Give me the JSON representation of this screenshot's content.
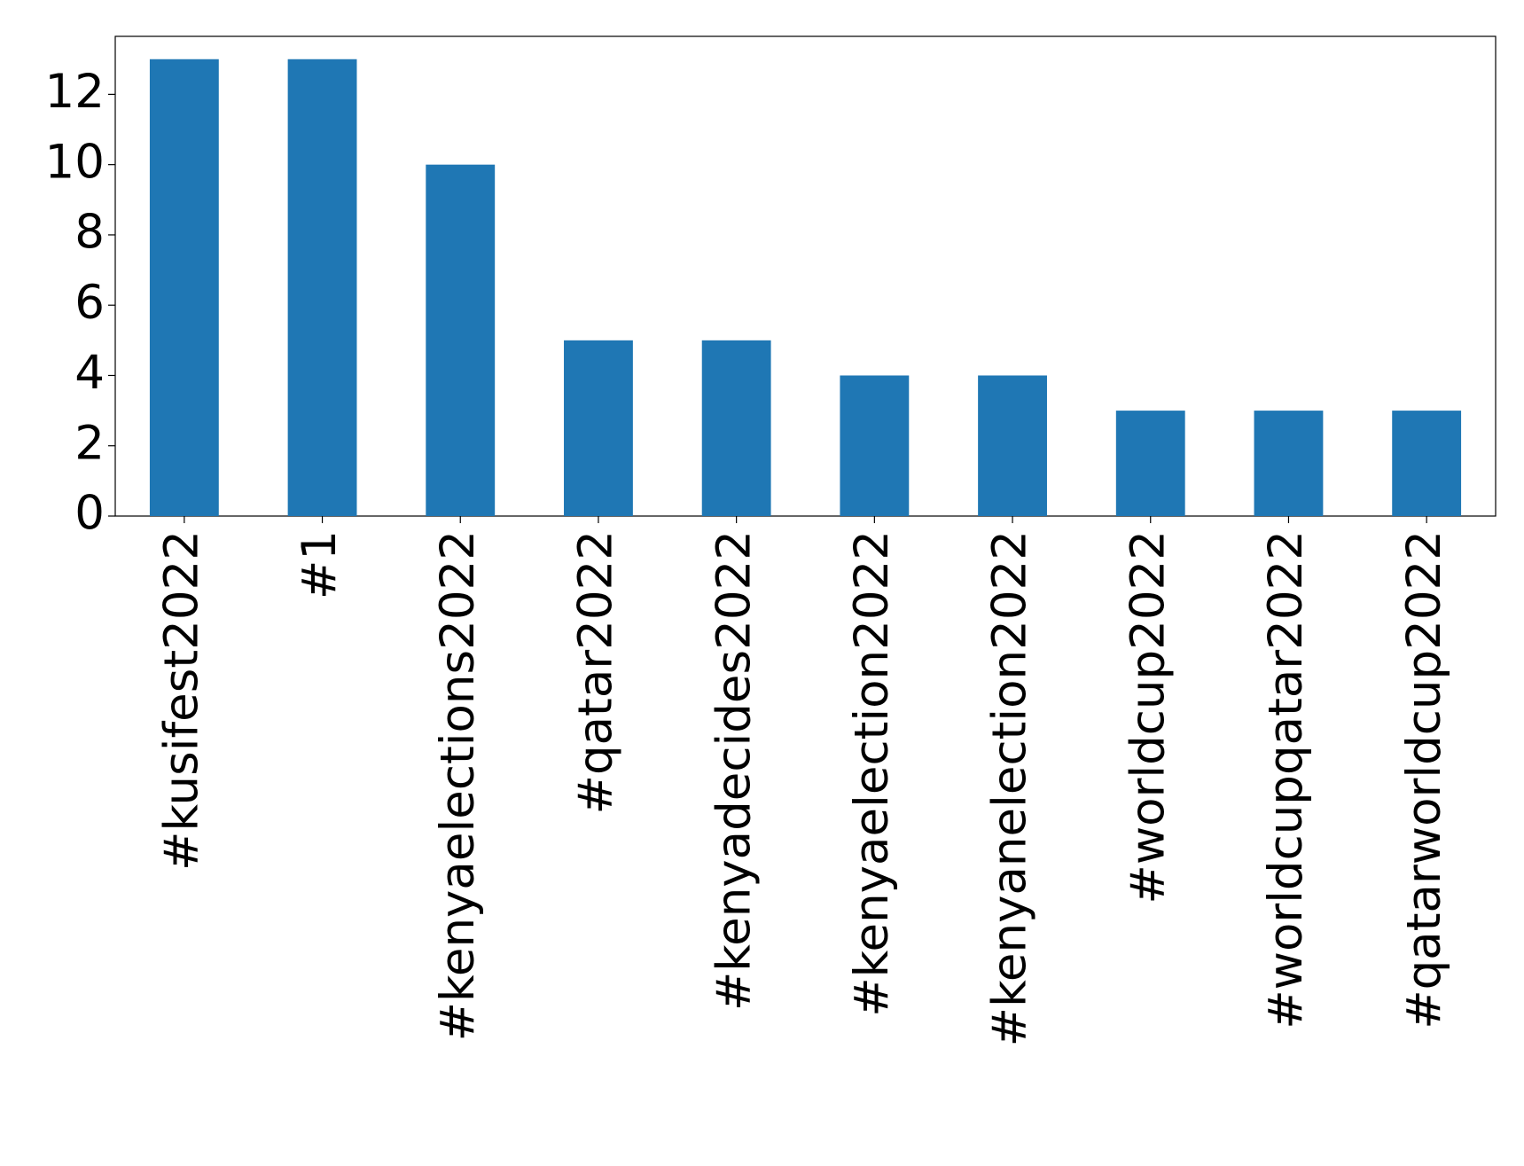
{
  "chart_data": {
    "type": "bar",
    "categories": [
      "#kusifest2022",
      "#1",
      "#kenyaelections2022",
      "#qatar2022",
      "#kenyadecides2022",
      "#kenyaelection2022",
      "#kenyanelection2022",
      "#worldcup2022",
      "#worldcupqatar2022",
      "#qatarworldcup2022"
    ],
    "values": [
      13,
      13,
      10,
      5,
      5,
      4,
      4,
      3,
      3,
      3
    ],
    "color": "#1f77b4",
    "ylim": [
      0,
      13.65
    ],
    "yticks": [
      0,
      2,
      4,
      6,
      8,
      10,
      12
    ],
    "grid": false
  }
}
